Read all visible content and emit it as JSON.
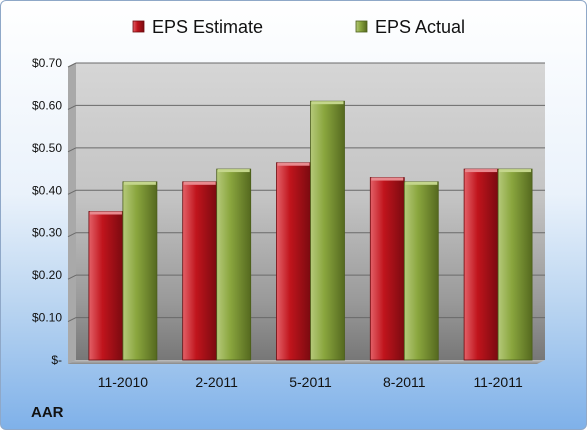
{
  "chart_data": {
    "type": "bar",
    "title": "",
    "xlabel": "",
    "ylabel": "",
    "categories": [
      "11-2010",
      "2-2011",
      "5-2011",
      "8-2011",
      "11-2011"
    ],
    "series": [
      {
        "name": "EPS Estimate",
        "values": [
          0.35,
          0.42,
          0.465,
          0.43,
          0.45
        ],
        "color": "#c0141c"
      },
      {
        "name": "EPS Actual",
        "values": [
          0.42,
          0.45,
          0.61,
          0.42,
          0.45
        ],
        "color": "#8aa63e"
      }
    ],
    "ylim": [
      0,
      0.7
    ],
    "yticks": [
      {
        "value": 0.0,
        "label": "$-"
      },
      {
        "value": 0.1,
        "label": "$0.10"
      },
      {
        "value": 0.2,
        "label": "$0.20"
      },
      {
        "value": 0.3,
        "label": "$0.30"
      },
      {
        "value": 0.4,
        "label": "$0.40"
      },
      {
        "value": 0.5,
        "label": "$0.50"
      },
      {
        "value": 0.6,
        "label": "$0.60"
      },
      {
        "value": 0.7,
        "label": "$0.70"
      }
    ],
    "grid": true,
    "legend_position": "top"
  },
  "company": "AAR"
}
